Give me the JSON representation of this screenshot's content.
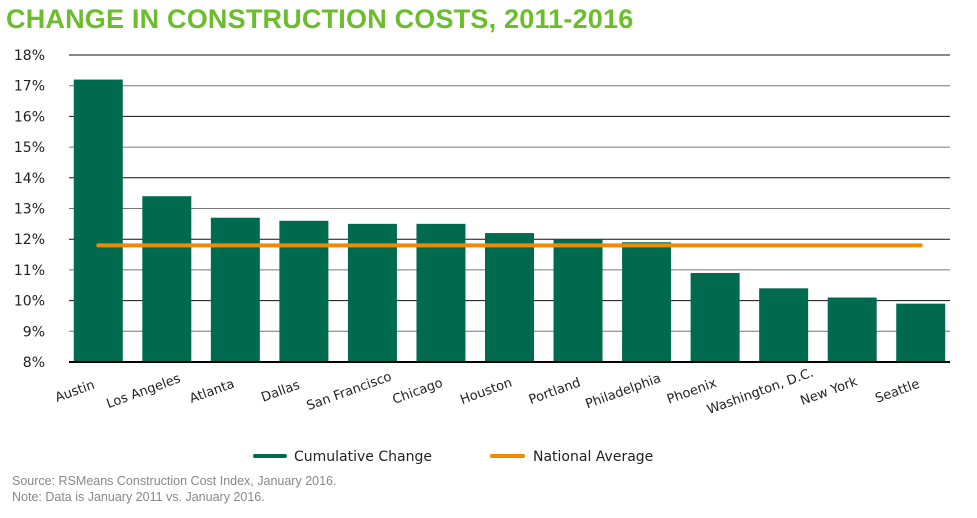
{
  "chart_data": {
    "type": "bar",
    "title": "CHANGE IN CONSTRUCTION COSTS, 2011-2016",
    "categories": [
      "Austin",
      "Los Angeles",
      "Atlanta",
      "Dallas",
      "San Francisco",
      "Chicago",
      "Houston",
      "Portland",
      "Philadelphia",
      "Phoenix",
      "Washington, D.C.",
      "New York",
      "Seattle"
    ],
    "series": [
      {
        "name": "Cumulative Change",
        "type": "bar",
        "color": "#006a4e",
        "values": [
          17.2,
          13.4,
          12.7,
          12.6,
          12.5,
          12.5,
          12.2,
          12.0,
          11.9,
          10.9,
          10.4,
          10.1,
          9.9
        ]
      },
      {
        "name": "National Average",
        "type": "line",
        "color": "#f28a00",
        "value": 11.8
      }
    ],
    "ylim": [
      8,
      18
    ],
    "yticks": [
      8,
      9,
      10,
      11,
      12,
      13,
      14,
      15,
      16,
      17,
      18
    ],
    "ytick_format": "%",
    "grid": true,
    "legend": "bottom"
  },
  "footer": {
    "source": "Source: RSMeans Construction Cost Index, January 2016.",
    "note": "Note: Data is January 2011 vs. January 2016."
  }
}
